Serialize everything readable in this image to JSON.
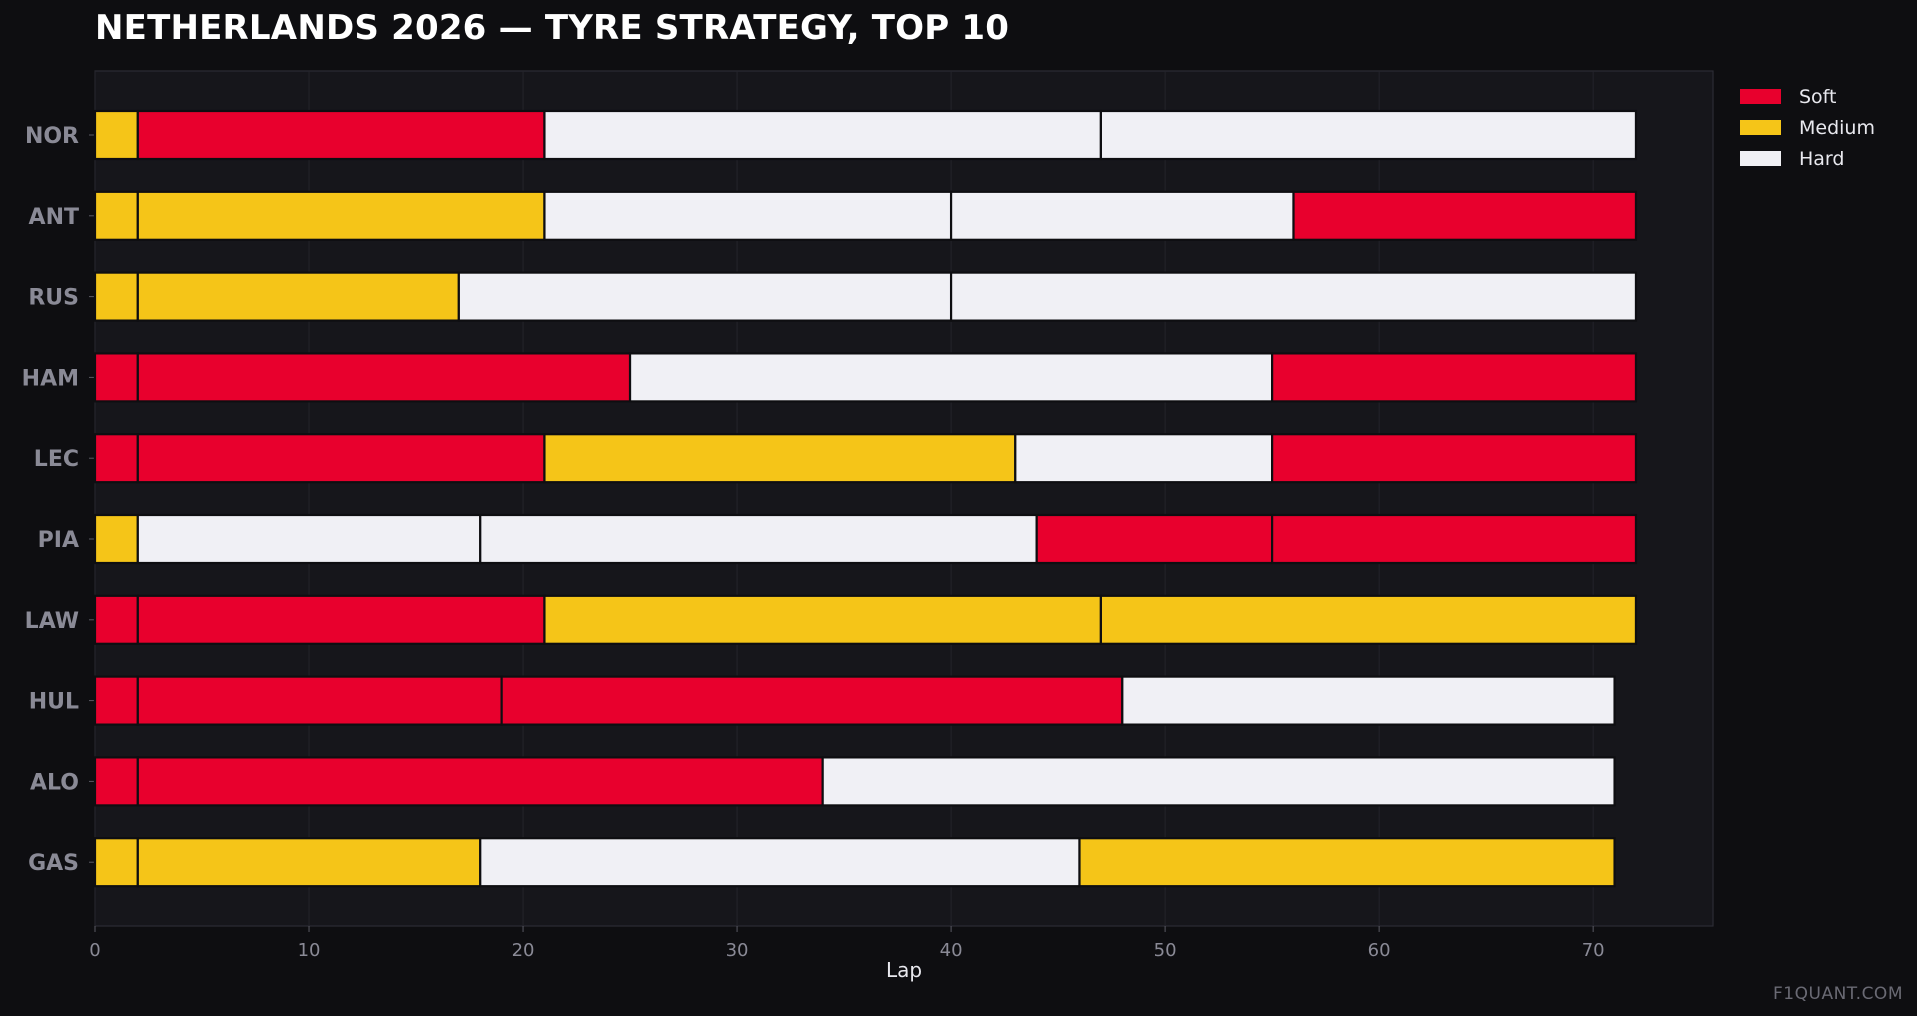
{
  "title": "NETHERLANDS 2026 — TYRE STRATEGY, TOP 10",
  "watermark": "F1QUANT.COM",
  "colors": {
    "Soft": "#e8002d",
    "Medium": "#f5c518",
    "Hard": "#f0f0f5",
    "background": "#0e0e11",
    "plot_background": "#16161b",
    "tick_label": "#8a8a96",
    "driver_label": "#8a8a96"
  },
  "chart_data": {
    "type": "bar",
    "orientation": "horizontal-stacked-stints",
    "title": "NETHERLANDS 2026 — TYRE STRATEGY, TOP 10",
    "xlabel": "Lap",
    "ylabel": "",
    "xlim": [
      0,
      75.6
    ],
    "xticks": [
      0,
      10,
      20,
      30,
      40,
      50,
      60,
      70
    ],
    "grid": "vertical",
    "legend": {
      "position": "top-right (outside)",
      "entries": [
        "Soft",
        "Medium",
        "Hard"
      ]
    },
    "drivers": [
      {
        "driver": "NOR",
        "stints": [
          {
            "compound": "Medium",
            "start": 0,
            "end": 2
          },
          {
            "compound": "Soft",
            "start": 2,
            "end": 21
          },
          {
            "compound": "Hard",
            "start": 21,
            "end": 47
          },
          {
            "compound": "Hard",
            "start": 47,
            "end": 72
          }
        ]
      },
      {
        "driver": "ANT",
        "stints": [
          {
            "compound": "Medium",
            "start": 0,
            "end": 2
          },
          {
            "compound": "Medium",
            "start": 2,
            "end": 21
          },
          {
            "compound": "Hard",
            "start": 21,
            "end": 40
          },
          {
            "compound": "Hard",
            "start": 40,
            "end": 56
          },
          {
            "compound": "Soft",
            "start": 56,
            "end": 72
          }
        ]
      },
      {
        "driver": "RUS",
        "stints": [
          {
            "compound": "Medium",
            "start": 0,
            "end": 2
          },
          {
            "compound": "Medium",
            "start": 2,
            "end": 17
          },
          {
            "compound": "Hard",
            "start": 17,
            "end": 40
          },
          {
            "compound": "Hard",
            "start": 40,
            "end": 72
          }
        ]
      },
      {
        "driver": "HAM",
        "stints": [
          {
            "compound": "Soft",
            "start": 0,
            "end": 2
          },
          {
            "compound": "Soft",
            "start": 2,
            "end": 25
          },
          {
            "compound": "Hard",
            "start": 25,
            "end": 55
          },
          {
            "compound": "Soft",
            "start": 55,
            "end": 72
          }
        ]
      },
      {
        "driver": "LEC",
        "stints": [
          {
            "compound": "Soft",
            "start": 0,
            "end": 2
          },
          {
            "compound": "Soft",
            "start": 2,
            "end": 21
          },
          {
            "compound": "Medium",
            "start": 21,
            "end": 43
          },
          {
            "compound": "Hard",
            "start": 43,
            "end": 55
          },
          {
            "compound": "Soft",
            "start": 55,
            "end": 72
          }
        ]
      },
      {
        "driver": "PIA",
        "stints": [
          {
            "compound": "Medium",
            "start": 0,
            "end": 2
          },
          {
            "compound": "Hard",
            "start": 2,
            "end": 18
          },
          {
            "compound": "Hard",
            "start": 18,
            "end": 44
          },
          {
            "compound": "Soft",
            "start": 44,
            "end": 55
          },
          {
            "compound": "Soft",
            "start": 55,
            "end": 72
          }
        ]
      },
      {
        "driver": "LAW",
        "stints": [
          {
            "compound": "Soft",
            "start": 0,
            "end": 2
          },
          {
            "compound": "Soft",
            "start": 2,
            "end": 21
          },
          {
            "compound": "Medium",
            "start": 21,
            "end": 47
          },
          {
            "compound": "Medium",
            "start": 47,
            "end": 72
          }
        ]
      },
      {
        "driver": "HUL",
        "stints": [
          {
            "compound": "Soft",
            "start": 0,
            "end": 2
          },
          {
            "compound": "Soft",
            "start": 2,
            "end": 19
          },
          {
            "compound": "Soft",
            "start": 19,
            "end": 48
          },
          {
            "compound": "Hard",
            "start": 48,
            "end": 71
          }
        ]
      },
      {
        "driver": "ALO",
        "stints": [
          {
            "compound": "Soft",
            "start": 0,
            "end": 2
          },
          {
            "compound": "Soft",
            "start": 2,
            "end": 34
          },
          {
            "compound": "Hard",
            "start": 34,
            "end": 71
          }
        ]
      },
      {
        "driver": "GAS",
        "stints": [
          {
            "compound": "Medium",
            "start": 0,
            "end": 2
          },
          {
            "compound": "Medium",
            "start": 2,
            "end": 18
          },
          {
            "compound": "Hard",
            "start": 18,
            "end": 46
          },
          {
            "compound": "Medium",
            "start": 46,
            "end": 71
          }
        ]
      }
    ]
  }
}
